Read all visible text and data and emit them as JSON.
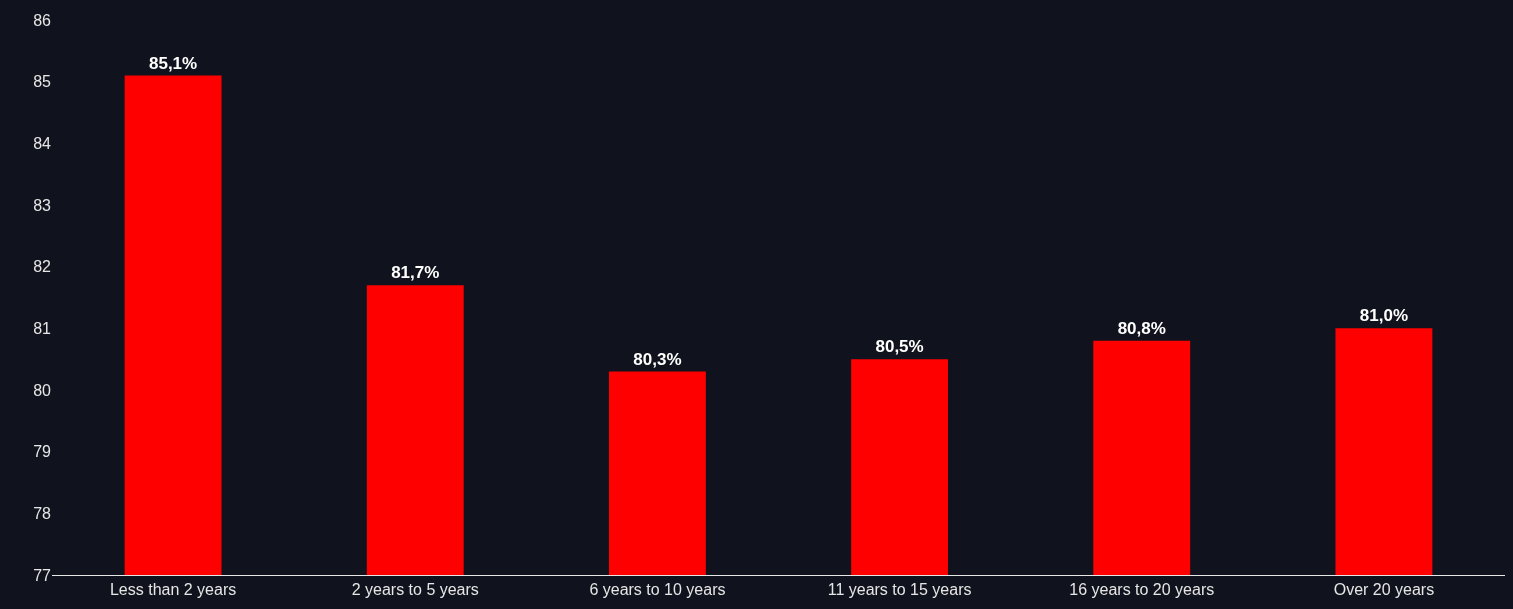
{
  "chart_data": {
    "type": "bar",
    "categories": [
      "Less than 2 years",
      "2 years to 5 years",
      "6 years to 10 years",
      "11 years to 15 years",
      "16 years to 20 years",
      "Over 20 years"
    ],
    "values": [
      85.1,
      81.7,
      80.3,
      80.5,
      80.8,
      81.0
    ],
    "value_labels": [
      "85,1%",
      "81,7%",
      "80,3%",
      "80,5%",
      "80,8%",
      "81,0%"
    ],
    "color": "#ff0000",
    "ylim": [
      77,
      86
    ],
    "yticks": [
      77,
      78,
      79,
      80,
      81,
      82,
      83,
      84,
      85,
      86
    ],
    "grid": false
  }
}
